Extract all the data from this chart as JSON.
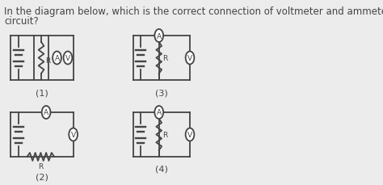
{
  "title_line1": "In the diagram below, which is the correct connection of voltmeter and ammeter in the",
  "title_line2": "circuit?",
  "title_fontsize": 8.5,
  "bg_color": "#ececec",
  "line_color": "#444444",
  "label1": "(1)",
  "label2": "(2)",
  "label3": "(3)",
  "label4": "(4)",
  "circuit_bg": "#ffffff"
}
